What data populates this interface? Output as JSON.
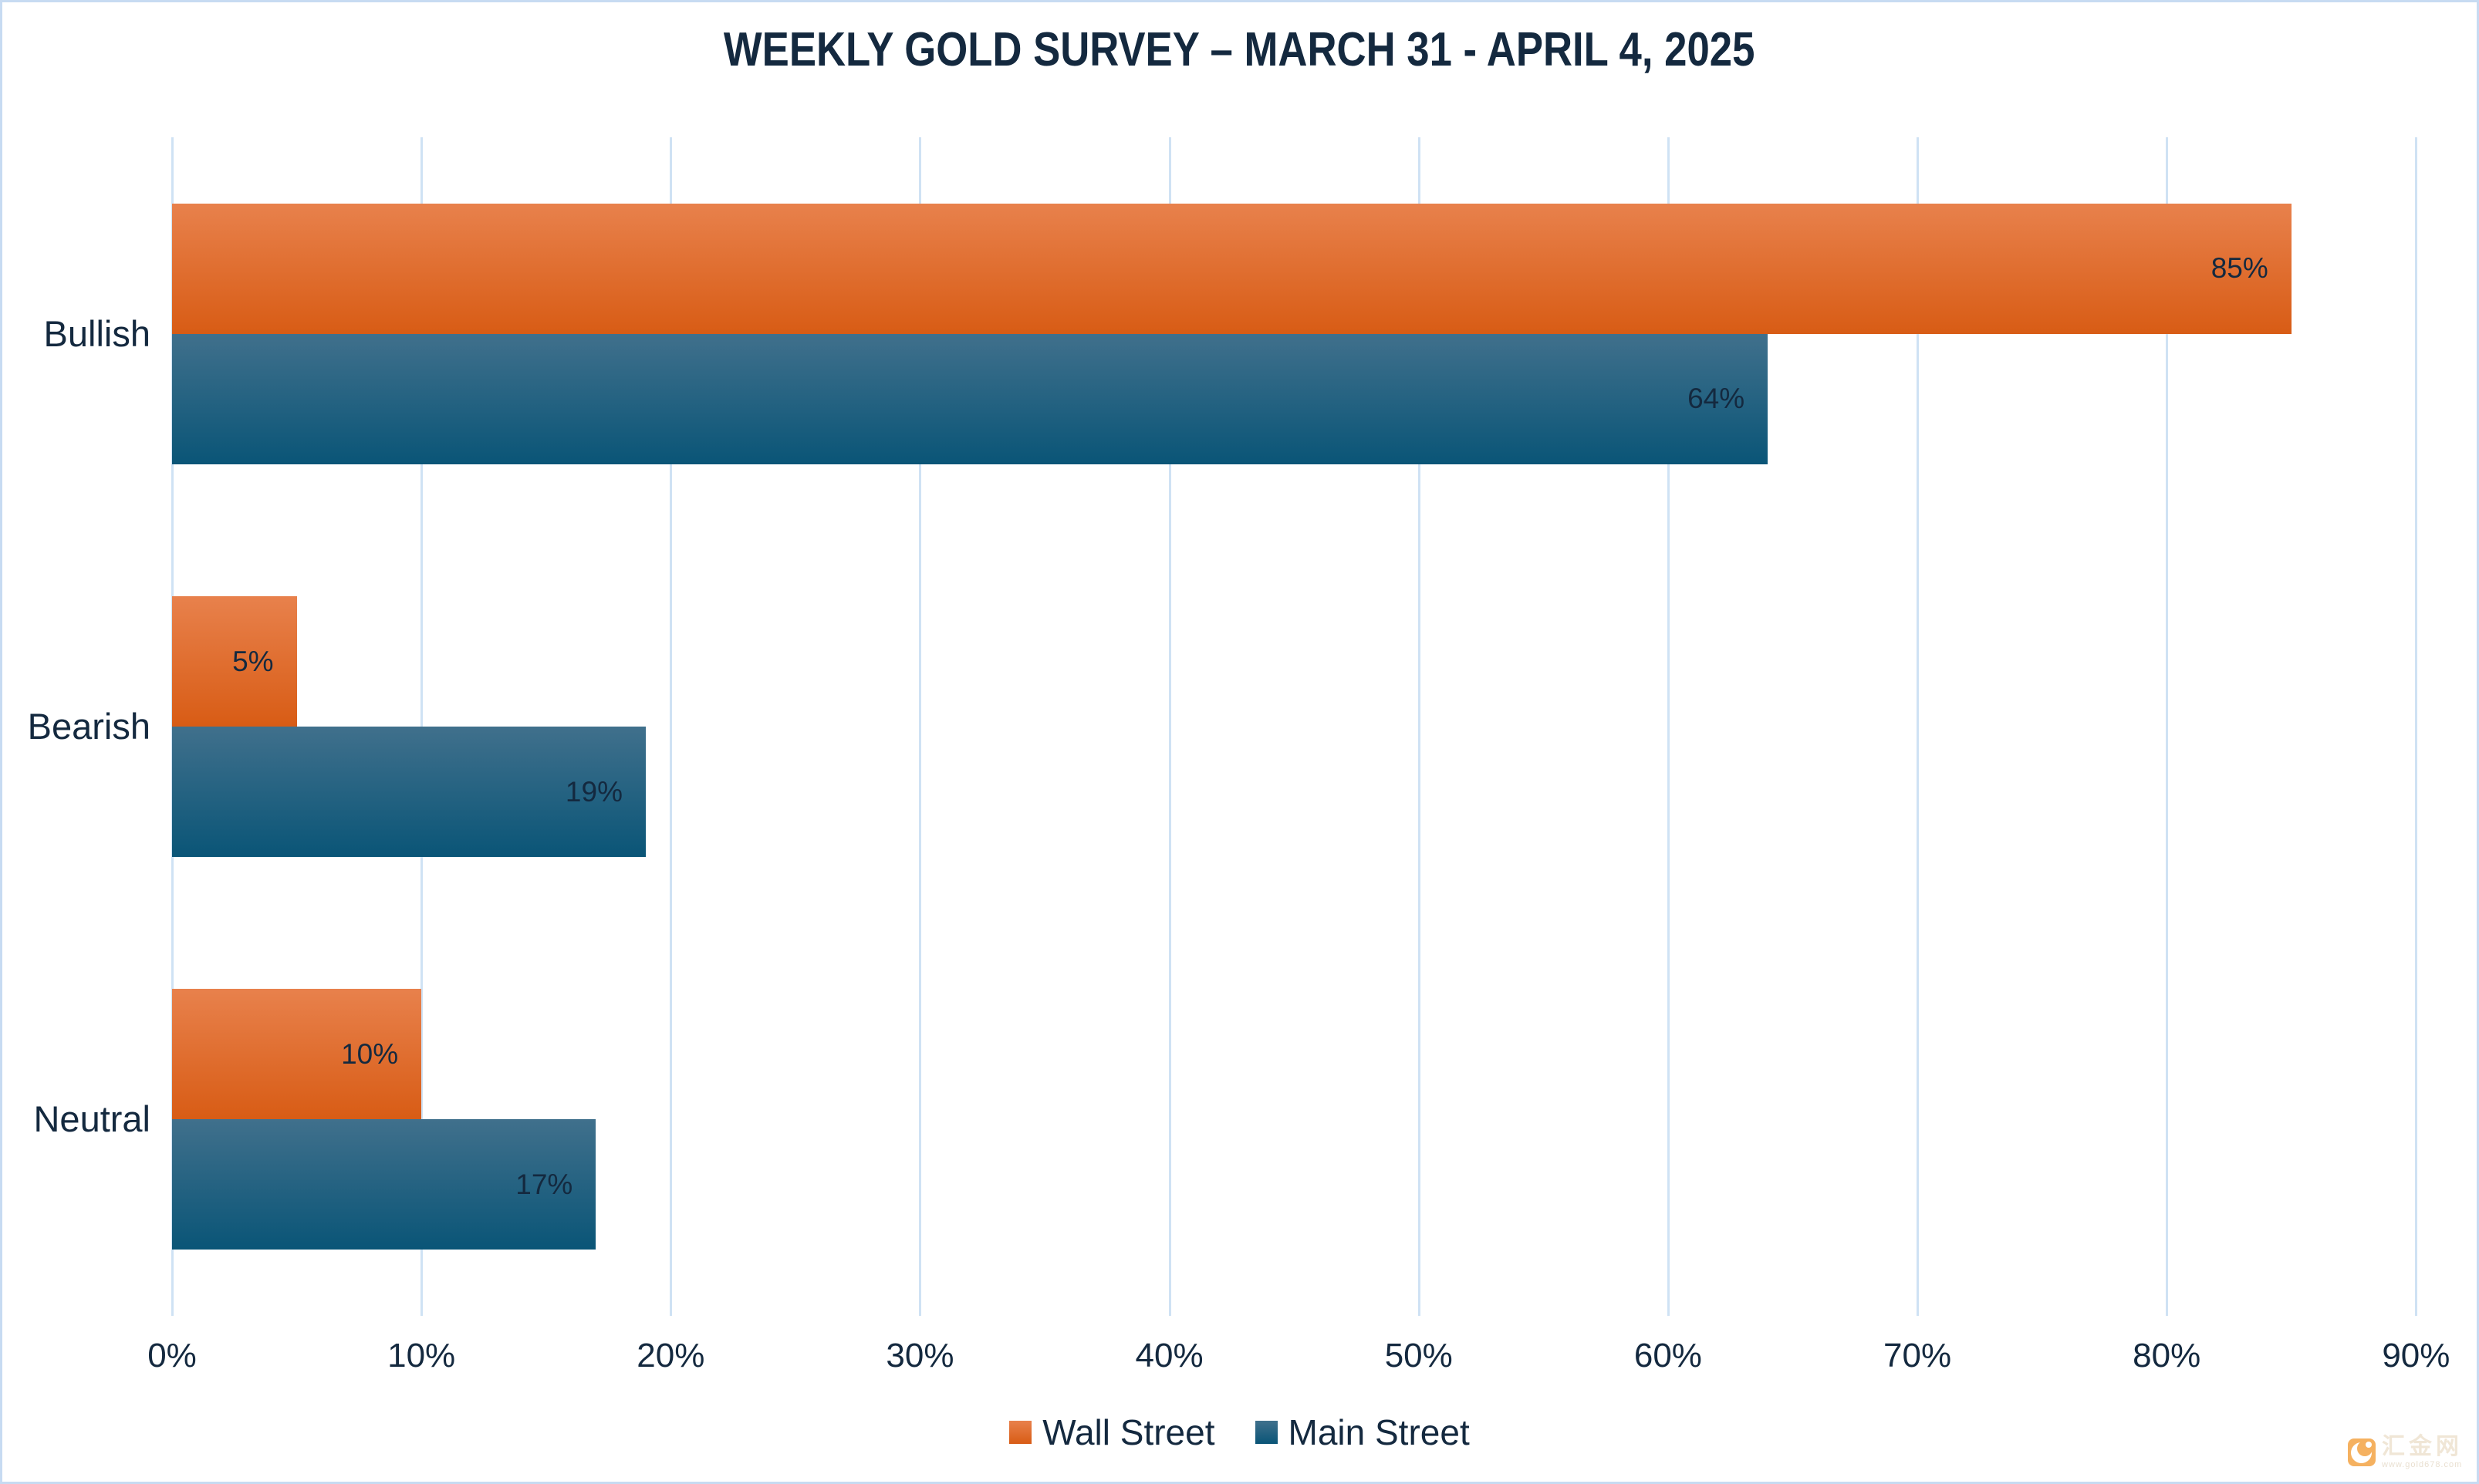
{
  "title": "WEEKLY GOLD SURVEY – MARCH 31 - APRIL 4, 2025",
  "chart_data": {
    "type": "bar",
    "orientation": "horizontal",
    "title": "WEEKLY GOLD SURVEY – MARCH 31 - APRIL 4, 2025",
    "categories": [
      "Bullish",
      "Bearish",
      "Neutral"
    ],
    "series": [
      {
        "name": "Wall Street",
        "values": [
          85,
          5,
          10
        ],
        "value_labels": [
          "85%",
          "5%",
          "10%"
        ],
        "color_top": "#E8814C",
        "color_bottom": "#D85C15"
      },
      {
        "name": "Main Street",
        "values": [
          64,
          19,
          17
        ],
        "value_labels": [
          "64%",
          "19%",
          "17%"
        ],
        "color_top": "#40708C",
        "color_bottom": "#0A5577"
      }
    ],
    "x_ticks": [
      "0%",
      "10%",
      "20%",
      "30%",
      "40%",
      "50%",
      "60%",
      "70%",
      "80%",
      "90%"
    ],
    "x_tick_values": [
      0,
      10,
      20,
      30,
      40,
      50,
      60,
      70,
      80,
      90
    ],
    "xlim": [
      0,
      92
    ],
    "grid": "vertical-only",
    "legend_position": "bottom-center",
    "value_label_position": "inside-end"
  },
  "colors": {
    "background": "#FFFFFF",
    "panel_border": "#C7DBF2",
    "gridline": "#CFE2F4",
    "text": "#14293F"
  },
  "watermark": {
    "site_name": "汇金网",
    "site_url": "www.gold678.com",
    "logo_color": "#F08300"
  }
}
